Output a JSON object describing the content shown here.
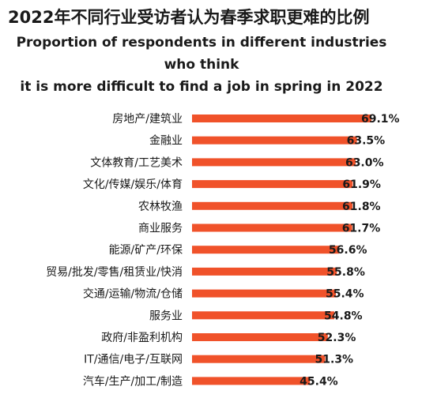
{
  "title_zh": "2022年不同行业受访者认为春季求职更难的比例",
  "title_en_line1": "Proportion of respondents in different industries who think",
  "title_en_line2": "it is more difficult to find a job in spring in 2022",
  "colors": {
    "bar": "#f0522a",
    "text": "#1a1a1a"
  },
  "chart_data": {
    "type": "bar",
    "orientation": "horizontal",
    "title": "2022年不同行业受访者认为春季求职更难的比例",
    "subtitle": "Proportion of respondents in different industries who think it is more difficult to find a job in spring in 2022",
    "categories": [
      "房地产/建筑业",
      "金融业",
      "文体教育/工艺美术",
      "文化/传媒/娱乐/体育",
      "农林牧渔",
      "商业服务",
      "能源/矿产/环保",
      "贸易/批发/零售/租赁业/快消",
      "交通/运输/物流/仓储",
      "服务业",
      "政府/非盈利机构",
      "IT/通信/电子/互联网",
      "汽车/生产/加工/制造"
    ],
    "values": [
      69.1,
      63.5,
      63.0,
      61.9,
      61.8,
      61.7,
      56.6,
      55.8,
      55.4,
      54.8,
      52.3,
      51.3,
      45.4
    ],
    "value_labels": [
      "69.1%",
      "63.5%",
      "63.0%",
      "61.9%",
      "61.8%",
      "61.7%",
      "56.6%",
      "55.8%",
      "55.4%",
      "54.8%",
      "52.3%",
      "51.3%",
      "45.4%"
    ],
    "unit": "%",
    "xlim": [
      0,
      69.1
    ],
    "grid": false,
    "legend": "none"
  }
}
